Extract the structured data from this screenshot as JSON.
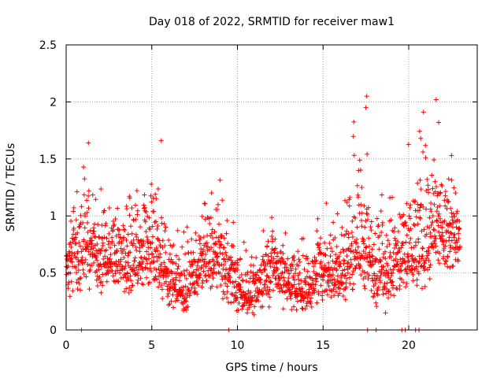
{
  "chart_data": {
    "type": "scatter",
    "title": "Day 018 of 2022, SRMTID for receiver maw1",
    "xlabel": "GPS time / hours",
    "ylabel": "SRMTID / TECUs",
    "xlim": [
      0,
      24.0
    ],
    "ylim": [
      0,
      2.5
    ],
    "grid": true,
    "marker": "+",
    "color": "#ff0000",
    "x_ticks": [
      0,
      5,
      10,
      15,
      20
    ],
    "x_tick_labels": [
      "0",
      "5",
      "10",
      "15",
      "20"
    ],
    "y_ticks": [
      0,
      0.5,
      1,
      1.5,
      2,
      2.5
    ],
    "y_tick_labels": [
      "0",
      "0.5",
      "1",
      "1.5",
      "2",
      "2.5"
    ],
    "data_range_hours": [
      0,
      23.0
    ],
    "envelope_hours": [
      0,
      1,
      2,
      3,
      4,
      5,
      6,
      7,
      8,
      9,
      10,
      11,
      12,
      13,
      14,
      15,
      16,
      17,
      18,
      19,
      20,
      21,
      22,
      23
    ],
    "envelope_mean": [
      0.55,
      0.72,
      0.65,
      0.6,
      0.55,
      0.75,
      0.45,
      0.3,
      0.62,
      0.6,
      0.35,
      0.28,
      0.6,
      0.4,
      0.32,
      0.55,
      0.45,
      0.8,
      0.5,
      0.55,
      0.65,
      0.75,
      0.85,
      0.8
    ],
    "envelope_max": [
      1.0,
      1.6,
      1.25,
      1.25,
      1.4,
      1.66,
      1.0,
      0.9,
      1.2,
      1.4,
      0.8,
      0.75,
      1.15,
      1.0,
      0.85,
      1.08,
      1.3,
      2.05,
      1.35,
      1.3,
      1.7,
      2.02,
      1.55,
      1.45
    ],
    "envelope_min": [
      0.1,
      0.2,
      0.15,
      0.15,
      0.1,
      0.25,
      0.1,
      0.1,
      0.2,
      0.15,
      0.05,
      0.05,
      0.1,
      0.1,
      0.05,
      0.15,
      0.1,
      0.2,
      0.0,
      0.0,
      0.1,
      0.2,
      0.3,
      0.3
    ],
    "near_zero_points": [
      [
        0.9,
        0.0
      ],
      [
        9.5,
        0.0
      ],
      [
        17.6,
        0.0
      ],
      [
        18.1,
        0.0
      ],
      [
        19.6,
        0.0
      ],
      [
        19.8,
        0.0
      ],
      [
        20.4,
        0.0
      ],
      [
        20.6,
        0.0
      ]
    ],
    "outliers": [
      [
        1.3,
        1.64
      ],
      [
        5.55,
        1.66
      ],
      [
        17.55,
        2.05
      ],
      [
        17.5,
        1.95
      ],
      [
        21.6,
        2.02
      ],
      [
        21.75,
        1.82
      ],
      [
        20.7,
        1.68
      ],
      [
        22.5,
        1.53
      ]
    ]
  }
}
